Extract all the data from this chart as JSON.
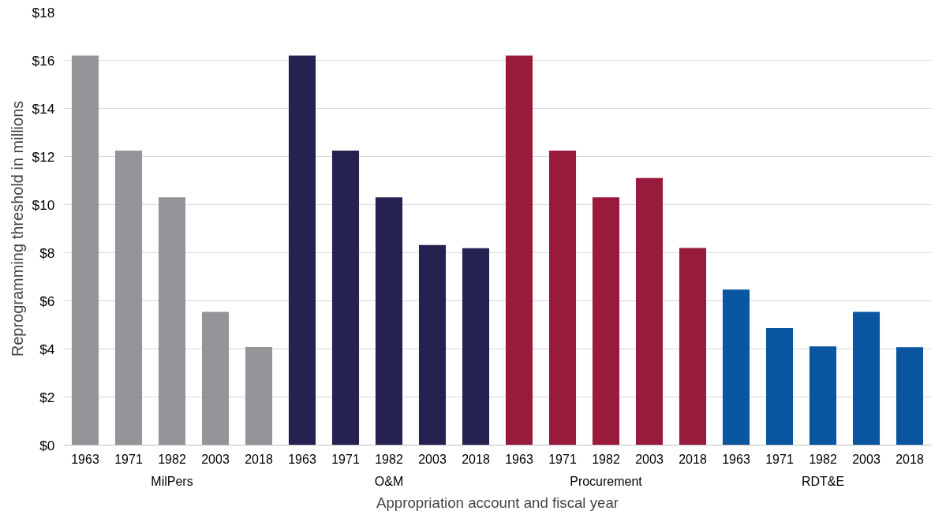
{
  "chart_data": {
    "type": "bar",
    "xlabel": "Appropriation account and fiscal year",
    "ylabel": "Reprogramming threshold in millions",
    "categories": [
      "1963",
      "1971",
      "1982",
      "2003",
      "2018",
      "1963",
      "1971",
      "1982",
      "2003",
      "2018",
      "1963",
      "1971",
      "1982",
      "2003",
      "2018",
      "1963",
      "1971",
      "1982",
      "2003",
      "2018"
    ],
    "series": [
      {
        "name": "MilPers",
        "color": "#939598",
        "values": [
          16.2,
          12.25,
          10.3,
          5.54,
          4.08,
          null,
          null,
          null,
          null,
          null,
          null,
          null,
          null,
          null,
          null,
          null,
          null,
          null,
          null,
          null
        ]
      },
      {
        "name": "O&M",
        "color": "#252151",
        "values": [
          null,
          null,
          null,
          null,
          null,
          16.2,
          12.25,
          10.3,
          8.32,
          8.19,
          null,
          null,
          null,
          null,
          null,
          null,
          null,
          null,
          null,
          null
        ]
      },
      {
        "name": "Procurement",
        "color": "#981b3e",
        "values": [
          null,
          null,
          null,
          null,
          null,
          null,
          null,
          null,
          null,
          null,
          16.2,
          12.25,
          10.3,
          11.11,
          8.2,
          null,
          null,
          null,
          null,
          null
        ]
      },
      {
        "name": "RDT&E",
        "color": "#0b56a0",
        "values": [
          null,
          null,
          null,
          null,
          null,
          null,
          null,
          null,
          null,
          null,
          null,
          null,
          null,
          null,
          null,
          6.47,
          4.87,
          4.11,
          5.54,
          4.07
        ]
      }
    ],
    "ylim": [
      0,
      18
    ],
    "yticks": [
      {
        "value": 0,
        "label": "$0"
      },
      {
        "value": 2,
        "label": "$2"
      },
      {
        "value": 4,
        "label": "$4"
      },
      {
        "value": 6,
        "label": "$6"
      },
      {
        "value": 8,
        "label": "$8"
      },
      {
        "value": 10,
        "label": "$10"
      },
      {
        "value": 12,
        "label": "$12"
      },
      {
        "value": 14,
        "label": "$14"
      },
      {
        "value": 16,
        "label": "$16"
      },
      {
        "value": 18,
        "label": "$18"
      }
    ],
    "grid": "y"
  }
}
